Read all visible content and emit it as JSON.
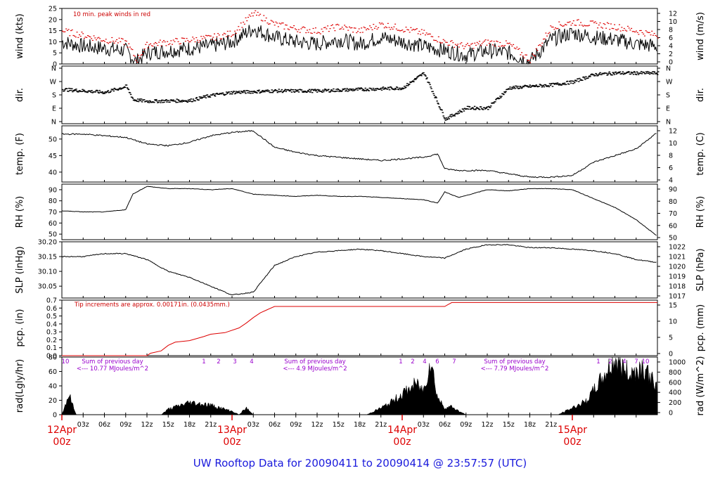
{
  "title": "UW Rooftop Data for 20090411  to  20090414 @ 23:57:57  (UTC)",
  "colors": {
    "trace": "#000000",
    "peak": "#dd0000",
    "date": "#dd0000",
    "note": "#cc0000",
    "sum": "#9900cc",
    "title": "#1a1adc"
  },
  "chart_data": [
    {
      "type": "line",
      "ylabel": "wind (kts)",
      "ylabel_right": "wind (m/s)",
      "annotation": "10 min. peak winds in red",
      "ylim": [
        0,
        25
      ],
      "yticks": [
        "0",
        "5",
        "10",
        "15",
        "20",
        "25"
      ],
      "yticks_right": [
        "0",
        "2",
        "4",
        "6",
        "8",
        "10",
        "12"
      ],
      "series": [
        {
          "x": [
            0,
            3,
            6,
            9,
            10.5,
            12,
            15,
            18,
            21,
            24,
            27,
            30,
            33,
            36,
            39,
            42,
            45,
            48,
            51,
            54,
            57,
            60,
            63,
            66,
            69,
            72,
            75,
            78,
            81,
            84
          ],
          "values": [
            10,
            8,
            7,
            6,
            1,
            5,
            6,
            7,
            8,
            10,
            16,
            12,
            10,
            9,
            11,
            9,
            12,
            10,
            8,
            6,
            4,
            6,
            5,
            1,
            11,
            14,
            12,
            11,
            9,
            8
          ]
        },
        {
          "x": [
            0,
            3,
            6,
            9,
            10.5,
            12,
            15,
            18,
            21,
            24,
            27,
            30,
            33,
            36,
            39,
            42,
            45,
            48,
            51,
            54,
            57,
            60,
            63,
            66,
            69,
            72,
            75,
            78,
            81,
            84
          ],
          "values": [
            15,
            13,
            11,
            10,
            2,
            9,
            10,
            11,
            12,
            14,
            23,
            18,
            16,
            15,
            17,
            15,
            18,
            16,
            14,
            10,
            8,
            10,
            9,
            2,
            17,
            19,
            18,
            17,
            15,
            13
          ]
        }
      ]
    },
    {
      "type": "scatter",
      "ylabel": "dir.",
      "ylabel_right": "dir.",
      "yticks": [
        "N",
        "E",
        "S",
        "W",
        "N"
      ],
      "series": [
        {
          "x": [
            0,
            6,
            9,
            10,
            12,
            18,
            21,
            24,
            30,
            36,
            42,
            48,
            51,
            54,
            57,
            60,
            63,
            69,
            72,
            75,
            78,
            84
          ],
          "values": [
            220,
            200,
            240,
            150,
            140,
            145,
            180,
            200,
            210,
            210,
            220,
            230,
            330,
            20,
            95,
            95,
            230,
            250,
            270,
            320,
            330,
            330
          ]
        }
      ]
    },
    {
      "type": "line",
      "ylabel": "temp. (F)",
      "ylabel_right": "temp. (C)",
      "ylim": [
        37,
        54
      ],
      "yticks": [
        "40",
        "45",
        "50"
      ],
      "yticks_right": [
        "4",
        "6",
        "8",
        "10",
        "12"
      ],
      "series": [
        {
          "x": [
            0,
            3,
            6,
            9,
            12,
            15,
            18,
            21,
            24,
            27,
            30,
            33,
            36,
            39,
            42,
            45,
            48,
            51,
            53,
            54,
            56,
            60,
            63,
            66,
            69,
            72,
            75,
            78,
            81,
            84
          ],
          "values": [
            51.5,
            51.5,
            51,
            50.5,
            48.5,
            48,
            49,
            51,
            52,
            52.5,
            47.5,
            46,
            45,
            44.5,
            44,
            43.5,
            44,
            44.5,
            45.5,
            41,
            40.5,
            40.5,
            39.5,
            38.5,
            38.5,
            39,
            43,
            45,
            47,
            52
          ]
        }
      ]
    },
    {
      "type": "line",
      "ylabel": "RH (%)",
      "ylabel_right": "RH (%)",
      "ylim": [
        45,
        95
      ],
      "yticks": [
        "50",
        "60",
        "70",
        "80",
        "90"
      ],
      "yticks_right": [
        "50",
        "60",
        "70",
        "80",
        "90"
      ],
      "series": [
        {
          "x": [
            0,
            3,
            6,
            9,
            10,
            12,
            15,
            18,
            21,
            24,
            27,
            30,
            33,
            36,
            39,
            42,
            45,
            48,
            51,
            53,
            54,
            56,
            60,
            63,
            66,
            69,
            72,
            75,
            78,
            81,
            84
          ],
          "values": [
            71,
            70,
            70,
            72,
            86,
            93,
            91,
            91,
            90,
            91,
            86,
            85,
            84,
            85,
            84,
            84,
            83,
            82,
            81,
            78,
            88,
            83,
            90,
            89,
            91,
            91,
            90,
            82,
            74,
            63,
            48
          ]
        }
      ]
    },
    {
      "type": "line",
      "ylabel": "SLP (inHg)",
      "ylabel_right": "SLP (hPa)",
      "ylim": [
        30.01,
        30.2
      ],
      "yticks": [
        "30.05",
        "30.10",
        "30.15",
        "30.20"
      ],
      "yticks_right": [
        "1017",
        "1018",
        "1019",
        "1020",
        "1021",
        "1022"
      ],
      "series": [
        {
          "x": [
            0,
            3,
            6,
            9,
            12,
            15,
            18,
            21,
            24,
            27,
            30,
            33,
            36,
            39,
            42,
            45,
            48,
            51,
            54,
            57,
            60,
            63,
            66,
            69,
            72,
            75,
            78,
            81,
            84
          ],
          "values": [
            30.15,
            30.15,
            30.16,
            30.16,
            30.14,
            30.1,
            30.08,
            30.05,
            30.02,
            30.03,
            30.12,
            30.15,
            30.165,
            30.17,
            30.175,
            30.17,
            30.16,
            30.15,
            30.145,
            30.175,
            30.19,
            30.19,
            30.18,
            30.18,
            30.175,
            30.17,
            30.16,
            30.14,
            30.13
          ]
        }
      ]
    },
    {
      "type": "line",
      "ylabel": "pcp. (in)",
      "ylabel_right": "pcp. (mm)",
      "annotation": "Tip increments are approx. 0.00171in. (0.0435mm.)",
      "ylim": [
        0,
        0.7
      ],
      "yticks": [
        "0.0",
        "0.1",
        "0.2",
        "0.3",
        "0.4",
        "0.5",
        "0.6",
        "0.7"
      ],
      "yticks_right": [
        "0",
        "5",
        "10",
        "15"
      ],
      "series": [
        {
          "x": [
            0,
            12,
            12.5,
            14,
            15,
            16,
            18,
            20,
            21,
            23,
            25,
            26,
            27,
            28,
            29,
            30,
            45,
            54,
            55,
            84
          ],
          "values": [
            0,
            0,
            0.03,
            0.06,
            0.13,
            0.17,
            0.19,
            0.24,
            0.27,
            0.29,
            0.35,
            0.41,
            0.48,
            0.54,
            0.58,
            0.62,
            0.62,
            0.62,
            0.67,
            0.67
          ]
        }
      ]
    },
    {
      "type": "area",
      "ylabel": "rad(Lgly/hr)",
      "ylabel_right": "rad (W/m^2)",
      "ylim": [
        0,
        80
      ],
      "yticks": [
        "0",
        "20",
        "40",
        "60",
        "80"
      ],
      "yticks_right": [
        "0",
        "200",
        "400",
        "600",
        "800",
        "1000"
      ],
      "annotations": [
        {
          "text": "Sum of previous day",
          "sub": "<--- 10.77 MJoules/m^2"
        },
        {
          "text": "Sum of previous day",
          "sub": "<--- 4.9 MJoules/m^2"
        },
        {
          "text": "Sum of previous day",
          "sub": "<--- 7.79 MJoules/m^2"
        }
      ],
      "pcp_hour_marks": [
        "10",
        "1",
        "2",
        "3",
        "4",
        "1",
        "2",
        "4",
        "6",
        "7",
        "1",
        "2",
        "4",
        "7",
        "10"
      ],
      "series": [
        {
          "x": [
            0,
            1,
            2,
            14,
            15,
            18,
            21,
            24,
            25,
            26,
            27,
            29,
            43,
            46,
            48,
            50,
            51,
            52,
            53,
            54,
            55,
            56,
            57,
            58,
            70,
            72,
            74,
            76,
            78,
            80,
            82,
            84
          ],
          "values": [
            0,
            30,
            0,
            0,
            8,
            18,
            14,
            5,
            0,
            10,
            0,
            0,
            0,
            15,
            30,
            45,
            35,
            80,
            25,
            10,
            12,
            5,
            0,
            0,
            0,
            10,
            20,
            50,
            80,
            60,
            70,
            40
          ]
        }
      ]
    }
  ],
  "x_axis": {
    "hour_ticks": [
      "03z",
      "06z",
      "09z",
      "12z",
      "15z",
      "18z",
      "21z",
      "03z",
      "06z",
      "09z",
      "12z",
      "15z",
      "18z",
      "21z",
      "03z",
      "06z",
      "09z",
      "12z",
      "15z",
      "18z",
      "21z"
    ],
    "day_labels": [
      {
        "date": "12Apr",
        "hour": "00z"
      },
      {
        "date": "13Apr",
        "hour": "00z"
      },
      {
        "date": "14Apr",
        "hour": "00z"
      },
      {
        "date": "15Apr",
        "hour": "00z"
      }
    ]
  }
}
